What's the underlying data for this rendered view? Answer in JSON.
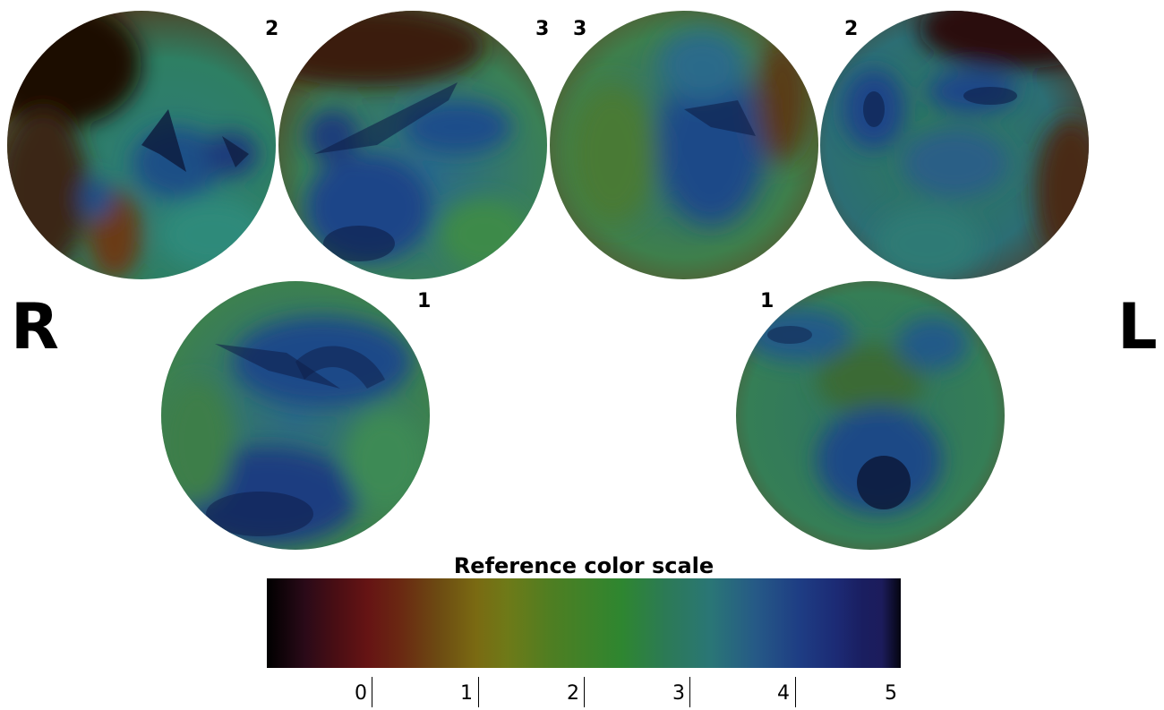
{
  "side_labels": {
    "right": "R",
    "left": "L"
  },
  "panels": [
    {
      "id": "top-1",
      "number": "2"
    },
    {
      "id": "top-2",
      "number": "3"
    },
    {
      "id": "top-3",
      "number": "3"
    },
    {
      "id": "top-4",
      "number": "2"
    },
    {
      "id": "bottom-left",
      "number": "1"
    },
    {
      "id": "bottom-right",
      "number": "1"
    }
  ],
  "color_scale": {
    "title": "Reference color scale",
    "ticks": [
      "0",
      "1",
      "2",
      "3",
      "4",
      "5"
    ],
    "colors": [
      "#000000",
      "#661414",
      "#7a6a12",
      "#2e8630",
      "#2a7676",
      "#1e3d84",
      "#050510"
    ]
  }
}
